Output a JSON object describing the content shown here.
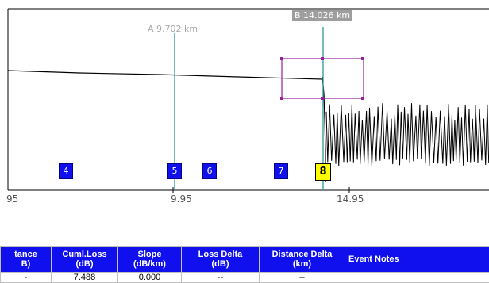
{
  "cursors": {
    "a": {
      "label": "A 9.702 km",
      "km": 9.702
    },
    "b": {
      "label": "B 14.026 km",
      "km": 14.026
    }
  },
  "markers": [
    {
      "label": "4",
      "selected": false
    },
    {
      "label": "5",
      "selected": false
    },
    {
      "label": "6",
      "selected": false
    },
    {
      "label": "7",
      "selected": false
    },
    {
      "label": "8",
      "selected": true
    }
  ],
  "axis": {
    "ticks": [
      "95",
      "9.95",
      "14.95"
    ]
  },
  "table": {
    "columns": [
      "tance\nB)",
      "Cuml.Loss\n(dB)",
      "Slope\n(dB/km)",
      "Loss Delta\n(dB)",
      "Distance Delta\n(km)",
      "Event Notes"
    ],
    "rows": [
      [
        "-",
        "7.488",
        "0.000",
        "--",
        "--",
        ""
      ]
    ]
  },
  "colors": {
    "cursor_line": "#2a9a9a",
    "zoom_box": "#9b1f9b",
    "marker_fill": "#1010ee",
    "marker_selected": "#ffff00",
    "header_fill": "#1010ee"
  }
}
